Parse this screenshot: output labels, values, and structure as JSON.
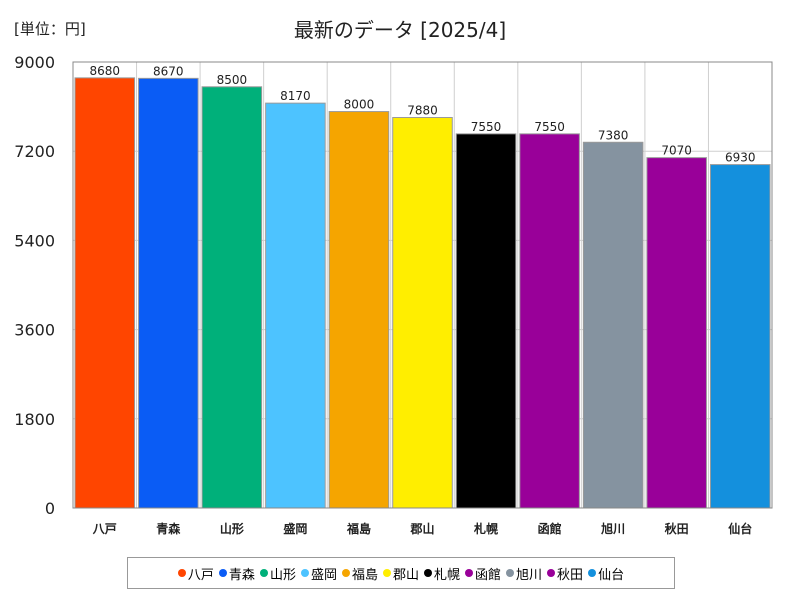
{
  "unit_label": "[単位：円]",
  "chart_data": {
    "type": "bar",
    "title": "最新のデータ [2025/4]",
    "categories": [
      "八戸",
      "青森",
      "山形",
      "盛岡",
      "福島",
      "郡山",
      "札幌",
      "函館",
      "旭川",
      "秋田",
      "仙台"
    ],
    "values": [
      8680,
      8670,
      8500,
      8170,
      8000,
      7880,
      7550,
      7550,
      7380,
      7070,
      6930
    ],
    "colors": [
      "#ff4500",
      "#0a5cf5",
      "#00b07a",
      "#4dc3ff",
      "#f5a500",
      "#ffee00",
      "#000000",
      "#990099",
      "#8593a0",
      "#990099",
      "#1490dd"
    ],
    "ylim": [
      0,
      9000
    ],
    "yticks": [
      0,
      1800,
      3600,
      5400,
      7200,
      9000
    ],
    "grid": true,
    "legend": "bottom"
  }
}
